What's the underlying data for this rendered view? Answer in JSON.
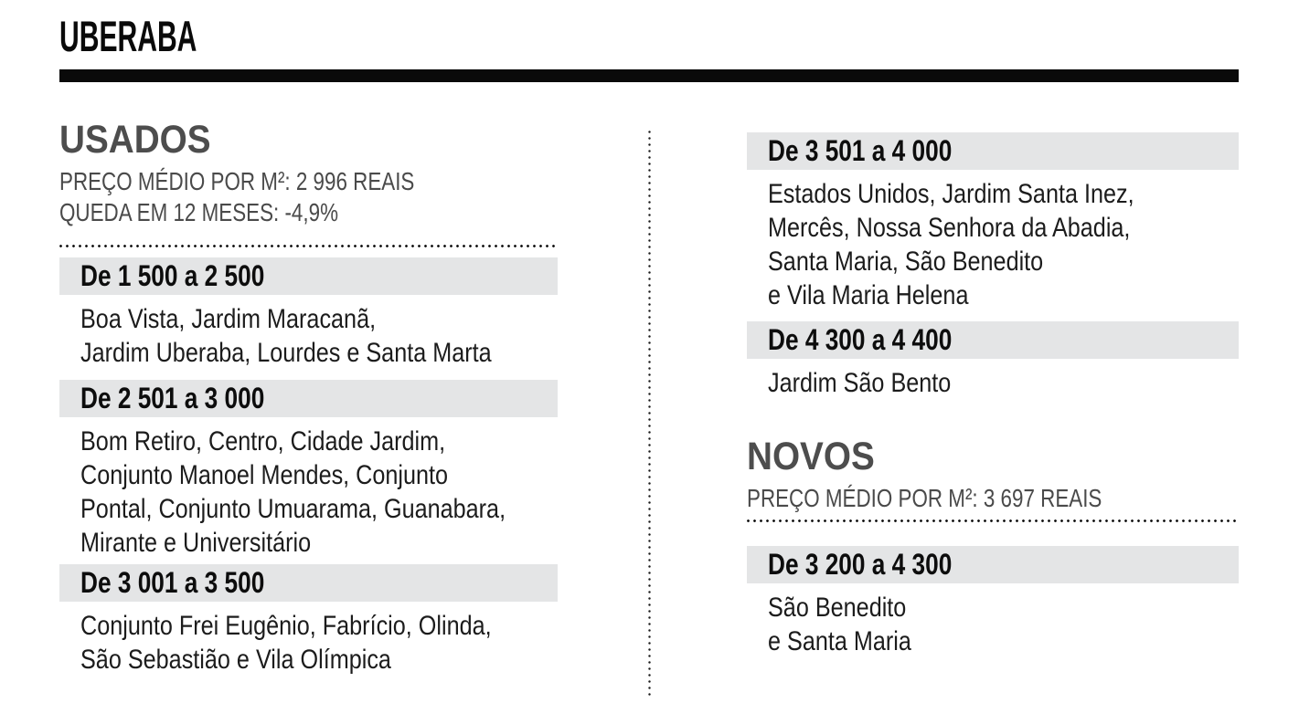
{
  "page": {
    "title": "UBERABA"
  },
  "colors": {
    "masthead_bar": "#0a0a0a",
    "band_background": "#e4e5e6",
    "section_heading": "#4d4d4d",
    "body_text": "#1c1c1c"
  },
  "usados": {
    "heading": "USADOS",
    "price_line": "PREÇO MÉDIO POR M²: 2 996 REAIS",
    "change_line": "QUEDA EM 12 MESES: -4,9%",
    "avg_price_per_m2_reais": "2 996",
    "change_12_months": "-4,9%",
    "ranges": [
      {
        "label": "De 1 500 a 2 500",
        "neighborhoods": "Boa Vista, Jardim Maracanã,\nJardim Uberaba, Lourdes e Santa Marta"
      },
      {
        "label": "De 2 501 a 3 000",
        "neighborhoods": "Bom Retiro, Centro, Cidade Jardim,\nConjunto Manoel Mendes, Conjunto\nPontal, Conjunto Umuarama, Guanabara,\nMirante e Universitário"
      },
      {
        "label": "De 3 001 a 3 500",
        "neighborhoods": "Conjunto Frei Eugênio, Fabrício, Olinda,\nSão Sebastião e Vila Olímpica"
      },
      {
        "label": "De 3 501 a 4 000",
        "neighborhoods": "Estados Unidos, Jardim Santa Inez,\nMercês, Nossa Senhora da Abadia,\nSanta Maria, São Benedito\ne Vila Maria Helena"
      },
      {
        "label": "De 4 300 a 4 400",
        "neighborhoods": "Jardim São Bento"
      }
    ]
  },
  "novos": {
    "heading": "NOVOS",
    "price_line": "PREÇO MÉDIO POR M²: 3 697 REAIS",
    "avg_price_per_m2_reais": "3 697",
    "ranges": [
      {
        "label": "De 3 200 a 4 300",
        "neighborhoods": "São Benedito\ne Santa Maria"
      }
    ]
  }
}
